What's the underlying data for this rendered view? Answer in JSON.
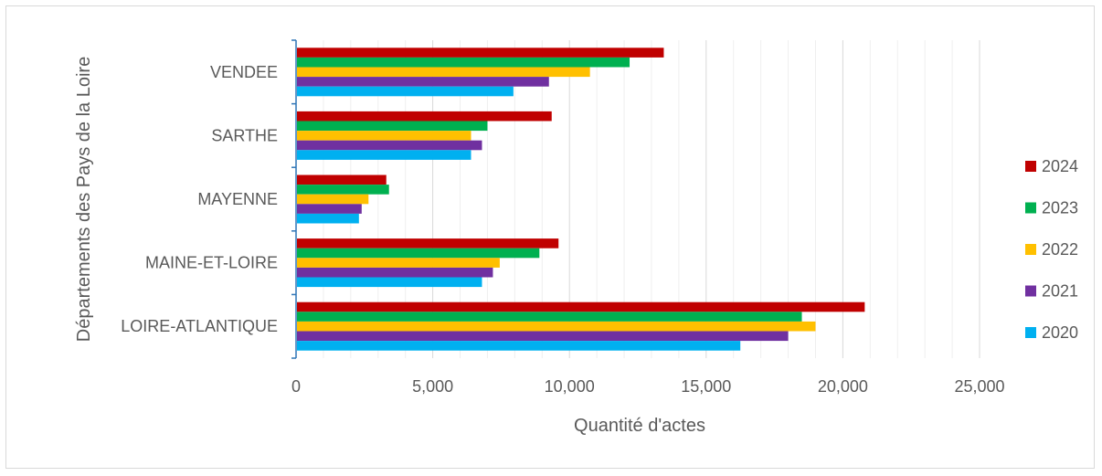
{
  "chart_data": {
    "type": "bar",
    "orientation": "horizontal",
    "title": "",
    "xlabel": "Quantité d'actes",
    "ylabel": "Départements des Pays de la Loire",
    "categories": [
      "LOIRE-ATLANTIQUE",
      "MAINE-ET-LOIRE",
      "MAYENNE",
      "SARTHE",
      "VENDEE"
    ],
    "xlim": [
      0,
      25000
    ],
    "xticks": [
      "0",
      "5,000",
      "10,000",
      "15,000",
      "20,000",
      "25,000"
    ],
    "series": [
      {
        "name": "2024",
        "color": "#c00000",
        "values": [
          20800,
          9600,
          3300,
          9350,
          13450
        ]
      },
      {
        "name": "2023",
        "color": "#00b050",
        "values": [
          18500,
          8900,
          3400,
          7000,
          12200
        ]
      },
      {
        "name": "2022",
        "color": "#ffc000",
        "values": [
          19000,
          7450,
          2650,
          6400,
          10750
        ]
      },
      {
        "name": "2021",
        "color": "#7030a0",
        "values": [
          18000,
          7200,
          2400,
          6800,
          9250
        ]
      },
      {
        "name": "2020",
        "color": "#00b0f0",
        "values": [
          16250,
          6800,
          2300,
          6400,
          7950
        ]
      }
    ],
    "grid": true,
    "legend_position": "right"
  }
}
